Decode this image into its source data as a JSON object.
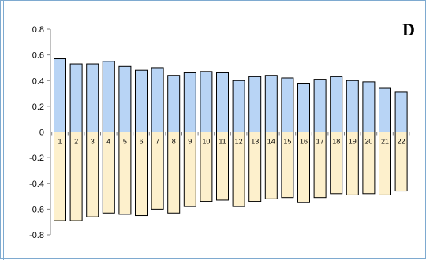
{
  "chart_data": {
    "type": "bar",
    "panel_label": "D",
    "categories": [
      "1",
      "2",
      "3",
      "4",
      "5",
      "6",
      "7",
      "8",
      "9",
      "10",
      "11",
      "12",
      "13",
      "14",
      "15",
      "16",
      "17",
      "18",
      "19",
      "20",
      "21",
      "22"
    ],
    "series": [
      {
        "color": "#b8d4f5",
        "values": [
          0.57,
          0.53,
          0.53,
          0.55,
          0.51,
          0.48,
          0.5,
          0.44,
          0.46,
          0.47,
          0.46,
          0.4,
          0.43,
          0.44,
          0.42,
          0.38,
          0.41,
          0.43,
          0.4,
          0.39,
          0.34,
          0.31
        ]
      },
      {
        "color": "#fdf0cc",
        "values": [
          -0.69,
          -0.69,
          -0.66,
          -0.63,
          -0.64,
          -0.65,
          -0.6,
          -0.63,
          -0.58,
          -0.54,
          -0.53,
          -0.58,
          -0.54,
          -0.52,
          -0.51,
          -0.55,
          -0.51,
          -0.48,
          -0.49,
          -0.48,
          -0.49,
          -0.46
        ]
      }
    ],
    "yticks": [
      "0.8",
      "0.6",
      "0.4",
      "0.2",
      "0",
      "-0.2",
      "-0.4",
      "-0.6",
      "-0.8"
    ],
    "ylim": [
      -0.8,
      0.8
    ],
    "grid": false,
    "legend": "none"
  }
}
